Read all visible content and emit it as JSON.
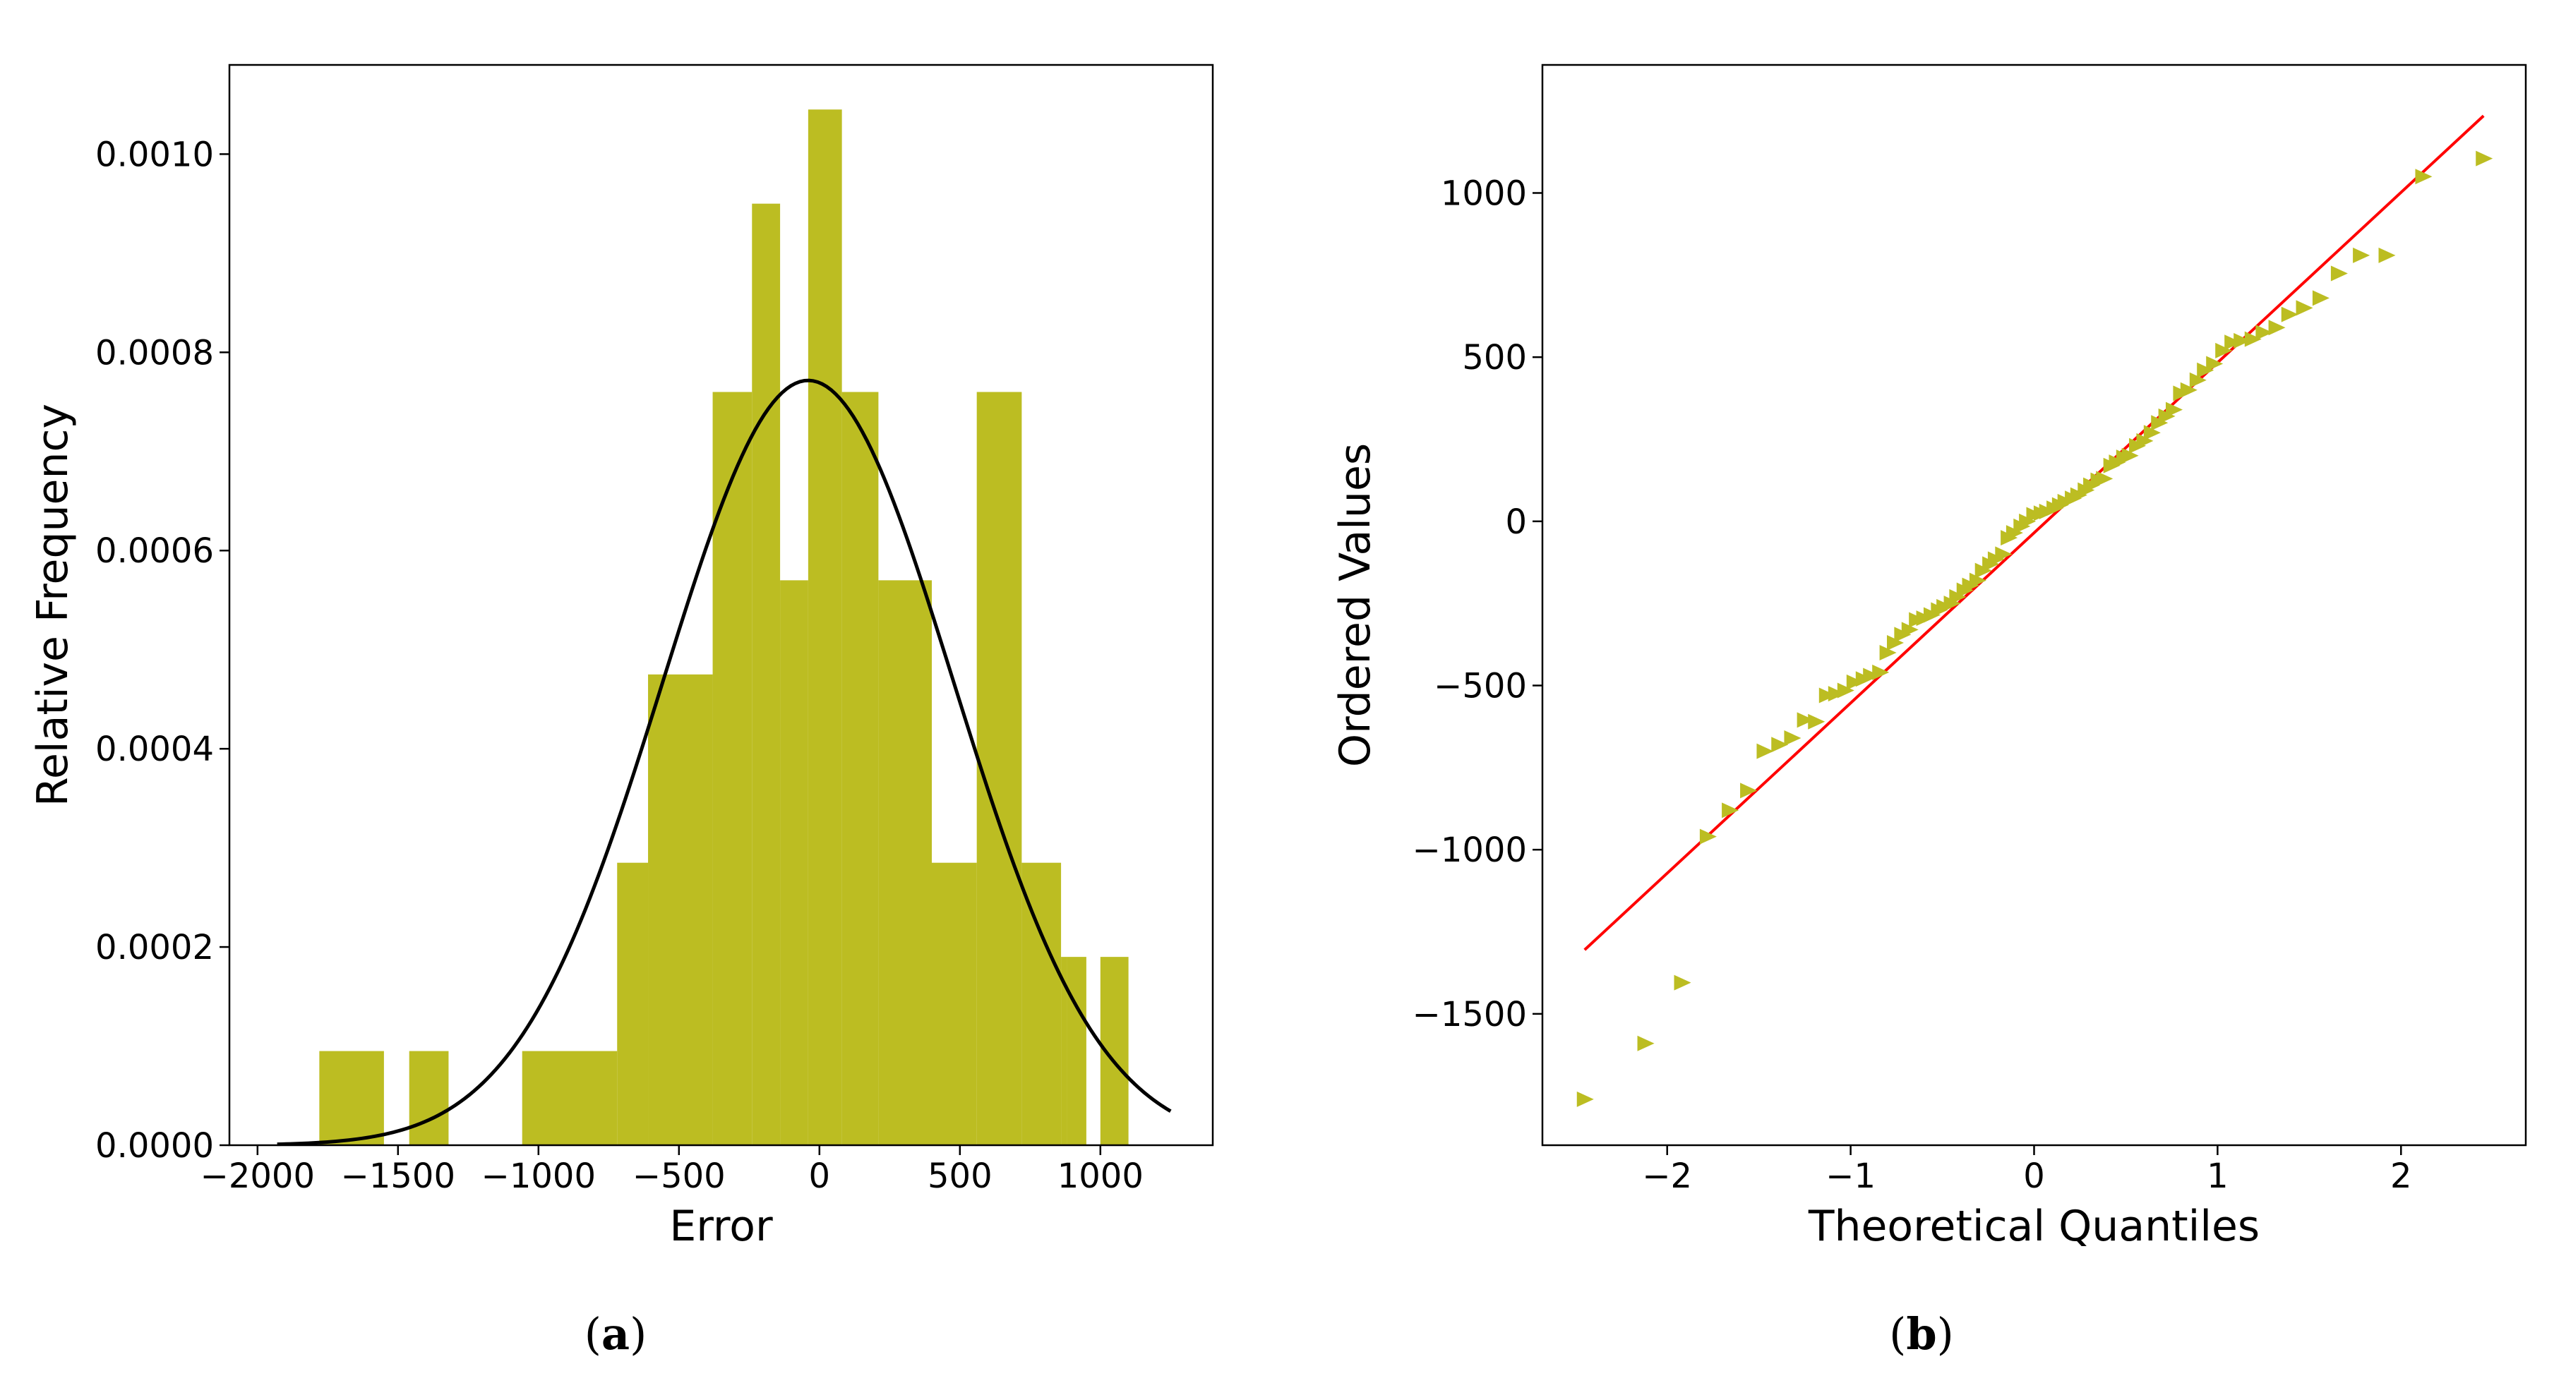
{
  "chart_data": [
    {
      "type": "bar",
      "subtype": "histogram with normal density curve",
      "panel_label": "a",
      "xlabel": "Error",
      "ylabel": "Relative Frequency",
      "xlim": [
        -2100,
        1400
      ],
      "ylim": [
        0,
        0.00109
      ],
      "xticks": [
        -2000,
        -1500,
        -1000,
        -500,
        0,
        500,
        1000
      ],
      "xtick_labels": [
        "−2000",
        "−1500",
        "−1000",
        "−500",
        "0",
        "500",
        "1000"
      ],
      "yticks": [
        0,
        0.0002,
        0.0004,
        0.0006,
        0.0008,
        0.001
      ],
      "ytick_labels": [
        "0.0000",
        "0.0002",
        "0.0004",
        "0.0006",
        "0.0008",
        "0.0010"
      ],
      "bins": [
        {
          "x0": -1780,
          "x1": -1550,
          "value": 9.5e-05
        },
        {
          "x0": -1550,
          "x1": -1320,
          "value": 0
        },
        {
          "x0": -1320,
          "x1": -1090,
          "value": 0
        },
        {
          "x0": -1058,
          "x1": -720,
          "value": 9.5e-05
        },
        {
          "x0": -720,
          "x1": -610,
          "value": 0.000285
        },
        {
          "x0": -610,
          "x1": -380,
          "value": 0.000475
        },
        {
          "x0": -380,
          "x1": -145,
          "value": 0.00076
        },
        {
          "x0": -145,
          "x1": -90,
          "value": 0.00057
        },
        {
          "x0": -90,
          "x1": 40,
          "value": 0.00057
        },
        {
          "x0": 40,
          "x1": 175,
          "value": 0.00076
        },
        {
          "x0": 175,
          "x1": 400,
          "value": 0.00057
        },
        {
          "x0": 400,
          "x1": 570,
          "value": 0.000285
        },
        {
          "x0": 570,
          "x1": 725,
          "value": 0.00076
        },
        {
          "x0": 725,
          "x1": 870,
          "value": 0.000285
        },
        {
          "x0": 870,
          "x1": 1100,
          "value": 0.00019
        }
      ],
      "bars": [
        {
          "x0": -1780,
          "x1": -1550,
          "value": 9.5e-05
        },
        {
          "x0": -1460,
          "x1": -1320,
          "value": 9.5e-05
        },
        {
          "x0": -1058,
          "x1": -720,
          "value": 9.5e-05
        },
        {
          "x0": -720,
          "x1": -610,
          "value": 0.000285
        },
        {
          "x0": -610,
          "x1": -380,
          "value": 0.000475
        },
        {
          "x0": -380,
          "x1": -240,
          "value": 0.00076
        },
        {
          "x0": -240,
          "x1": -140,
          "value": 0.00095
        },
        {
          "x0": -140,
          "x1": -40,
          "value": 0.00057
        },
        {
          "x0": -40,
          "x1": 80,
          "value": 0.001045
        },
        {
          "x0": 80,
          "x1": 210,
          "value": 0.00076
        },
        {
          "x0": 210,
          "x1": 400,
          "value": 0.00057
        },
        {
          "x0": 400,
          "x1": 560,
          "value": 0.000285
        },
        {
          "x0": 560,
          "x1": 720,
          "value": 0.00076
        },
        {
          "x0": 720,
          "x1": 860,
          "value": 0.000285
        },
        {
          "x0": 860,
          "x1": 880,
          "value": 0.00019
        },
        {
          "x0": 880,
          "x1": 950,
          "value": 0.00019
        },
        {
          "x0": 1000,
          "x1": 1100,
          "value": 0.00019
        }
      ],
      "normal_curve": {
        "mean": -40,
        "std": 517,
        "x_range": [
          -1930,
          1250
        ]
      },
      "colors": {
        "bars": "#bcbd22",
        "curve": "#000000"
      }
    },
    {
      "type": "scatter",
      "subtype": "Q-Q plot",
      "panel_label": "b",
      "xlabel": "Theoretical Quantiles",
      "ylabel": "Ordered Values",
      "xlim": [
        -2.68,
        2.68
      ],
      "ylim": [
        -1900,
        1390
      ],
      "xticks": [
        -2,
        -1,
        0,
        1,
        2
      ],
      "xtick_labels": [
        "−2",
        "−1",
        "0",
        "1",
        "2"
      ],
      "yticks": [
        -1500,
        -1000,
        -500,
        0,
        500,
        1000
      ],
      "ytick_labels": [
        "−1500",
        "−1000",
        "−500",
        "0",
        "500",
        "1000"
      ],
      "reference_line": {
        "x": [
          -2.45,
          2.45
        ],
        "y": [
          -1305,
          1235
        ]
      },
      "points": [
        {
          "x": -2.45,
          "y": -1760
        },
        {
          "x": -2.12,
          "y": -1590
        },
        {
          "x": -1.92,
          "y": -1405
        },
        {
          "x": -1.78,
          "y": -960
        },
        {
          "x": -1.66,
          "y": -880
        },
        {
          "x": -1.56,
          "y": -820
        },
        {
          "x": -1.47,
          "y": -700
        },
        {
          "x": -1.39,
          "y": -680
        },
        {
          "x": -1.32,
          "y": -660
        },
        {
          "x": -1.25,
          "y": -605
        },
        {
          "x": -1.19,
          "y": -610
        },
        {
          "x": -1.13,
          "y": -530
        },
        {
          "x": -1.08,
          "y": -525
        },
        {
          "x": -1.03,
          "y": -515
        },
        {
          "x": -0.98,
          "y": -490
        },
        {
          "x": -0.93,
          "y": -480
        },
        {
          "x": -0.89,
          "y": -470
        },
        {
          "x": -0.84,
          "y": -460
        },
        {
          "x": -0.8,
          "y": -400
        },
        {
          "x": -0.76,
          "y": -370
        },
        {
          "x": -0.72,
          "y": -345
        },
        {
          "x": -0.68,
          "y": -330
        },
        {
          "x": -0.64,
          "y": -300
        },
        {
          "x": -0.6,
          "y": -295
        },
        {
          "x": -0.56,
          "y": -285
        },
        {
          "x": -0.52,
          "y": -270
        },
        {
          "x": -0.49,
          "y": -260
        },
        {
          "x": -0.45,
          "y": -250
        },
        {
          "x": -0.42,
          "y": -230
        },
        {
          "x": -0.38,
          "y": -210
        },
        {
          "x": -0.35,
          "y": -195
        },
        {
          "x": -0.31,
          "y": -180
        },
        {
          "x": -0.28,
          "y": -150
        },
        {
          "x": -0.24,
          "y": -130
        },
        {
          "x": -0.21,
          "y": -115
        },
        {
          "x": -0.17,
          "y": -100
        },
        {
          "x": -0.14,
          "y": -50
        },
        {
          "x": -0.11,
          "y": -35
        },
        {
          "x": -0.07,
          "y": -15
        },
        {
          "x": -0.04,
          "y": 0
        },
        {
          "x": 0.0,
          "y": 20
        },
        {
          "x": 0.04,
          "y": 25
        },
        {
          "x": 0.07,
          "y": 30
        },
        {
          "x": 0.11,
          "y": 40
        },
        {
          "x": 0.14,
          "y": 50
        },
        {
          "x": 0.17,
          "y": 60
        },
        {
          "x": 0.21,
          "y": 70
        },
        {
          "x": 0.24,
          "y": 80
        },
        {
          "x": 0.28,
          "y": 95
        },
        {
          "x": 0.31,
          "y": 110
        },
        {
          "x": 0.35,
          "y": 125
        },
        {
          "x": 0.38,
          "y": 130
        },
        {
          "x": 0.42,
          "y": 170
        },
        {
          "x": 0.45,
          "y": 180
        },
        {
          "x": 0.49,
          "y": 195
        },
        {
          "x": 0.52,
          "y": 200
        },
        {
          "x": 0.56,
          "y": 230
        },
        {
          "x": 0.6,
          "y": 245
        },
        {
          "x": 0.64,
          "y": 270
        },
        {
          "x": 0.68,
          "y": 300
        },
        {
          "x": 0.72,
          "y": 320
        },
        {
          "x": 0.76,
          "y": 340
        },
        {
          "x": 0.8,
          "y": 390
        },
        {
          "x": 0.84,
          "y": 400
        },
        {
          "x": 0.89,
          "y": 430
        },
        {
          "x": 0.93,
          "y": 460
        },
        {
          "x": 0.98,
          "y": 480
        },
        {
          "x": 1.03,
          "y": 520
        },
        {
          "x": 1.08,
          "y": 545
        },
        {
          "x": 1.13,
          "y": 550
        },
        {
          "x": 1.19,
          "y": 555
        },
        {
          "x": 1.25,
          "y": 575
        },
        {
          "x": 1.32,
          "y": 590
        },
        {
          "x": 1.39,
          "y": 630
        },
        {
          "x": 1.47,
          "y": 650
        },
        {
          "x": 1.56,
          "y": 680
        },
        {
          "x": 1.66,
          "y": 755
        },
        {
          "x": 1.78,
          "y": 810
        },
        {
          "x": 1.92,
          "y": 810
        },
        {
          "x": 2.12,
          "y": 1050
        },
        {
          "x": 2.45,
          "y": 1105
        }
      ],
      "colors": {
        "points": "#bcbd22",
        "line": "#ff0000"
      }
    }
  ]
}
